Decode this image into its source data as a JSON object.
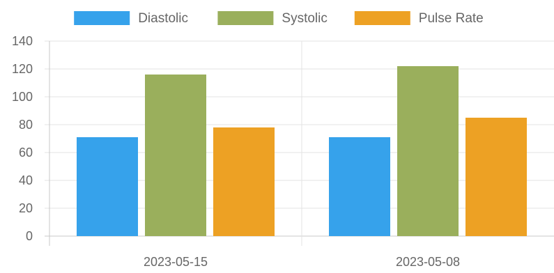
{
  "chart_data": {
    "type": "bar",
    "categories": [
      "2023-05-15",
      "2023-05-08"
    ],
    "series": [
      {
        "name": "Diastolic",
        "values": [
          71,
          71
        ],
        "color": "#36a2eb"
      },
      {
        "name": "Systolic",
        "values": [
          116,
          122
        ],
        "color": "#9aaf5c"
      },
      {
        "name": "Pulse Rate",
        "values": [
          78,
          85
        ],
        "color": "#eda124"
      }
    ],
    "ylim": [
      0,
      140
    ],
    "y_ticks": [
      0,
      20,
      40,
      60,
      80,
      100,
      120,
      140
    ],
    "title": "",
    "xlabel": "",
    "ylabel": "",
    "legend": "top-center",
    "grid": true
  }
}
